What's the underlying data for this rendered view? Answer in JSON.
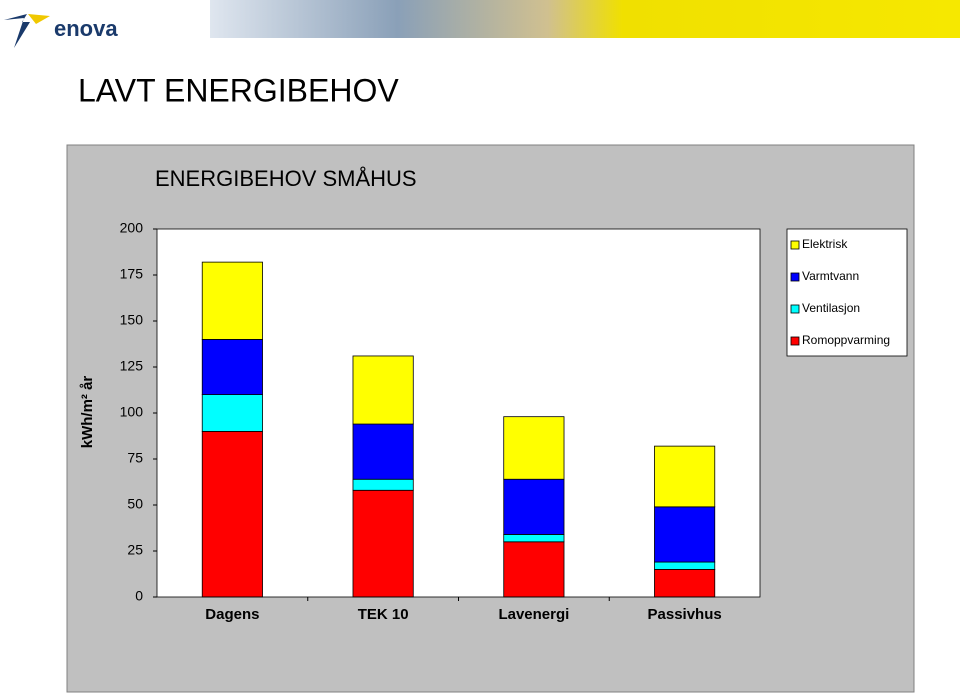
{
  "header": {
    "logo": "enova",
    "title": "LAVT ENERGIBEHOV"
  },
  "chart_data": {
    "type": "stacked-bar",
    "title": "ENERGIBEHOV SMÅHUS",
    "y_label": "kWh/m² år",
    "categories": [
      "Dagens",
      "TEK 10",
      "Lavenergi",
      "Passivhus"
    ],
    "series": [
      {
        "name": "Romoppvarming",
        "color": "#ff0000",
        "values": [
          90,
          58,
          30,
          15
        ]
      },
      {
        "name": "Ventilasjon",
        "color": "#00ffff",
        "values": [
          20,
          6,
          4,
          4
        ]
      },
      {
        "name": "Varmtvann",
        "color": "#0000ff",
        "values": [
          30,
          30,
          30,
          30
        ]
      },
      {
        "name": "Elektrisk",
        "color": "#ffff00",
        "values": [
          42,
          37,
          34,
          33
        ]
      }
    ],
    "ylim": [
      0,
      200
    ],
    "yticks": [
      0,
      25,
      50,
      75,
      100,
      125,
      150,
      175,
      200
    ],
    "grid": false,
    "legend": "right"
  }
}
